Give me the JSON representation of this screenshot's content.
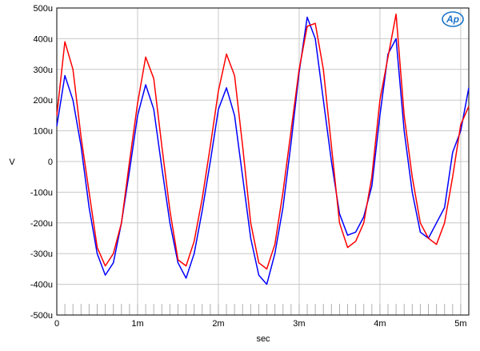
{
  "chart_data": {
    "type": "line",
    "title": "",
    "xlabel": "sec",
    "ylabel": "V",
    "xlim": [
      0,
      0.0051
    ],
    "ylim": [
      -0.0005,
      0.0005
    ],
    "grid": true,
    "x_ticks": [
      {
        "value": 0,
        "label": "0"
      },
      {
        "value": 0.001,
        "label": "1m"
      },
      {
        "value": 0.002,
        "label": "2m"
      },
      {
        "value": 0.003,
        "label": "3m"
      },
      {
        "value": 0.004,
        "label": "4m"
      },
      {
        "value": 0.005,
        "label": "5m"
      }
    ],
    "y_ticks": [
      {
        "value": 0.0005,
        "label": "500u"
      },
      {
        "value": 0.0004,
        "label": "400u"
      },
      {
        "value": 0.0003,
        "label": "300u"
      },
      {
        "value": 0.0002,
        "label": "200u"
      },
      {
        "value": 0.0001,
        "label": "100u"
      },
      {
        "value": 0,
        "label": "0"
      },
      {
        "value": -0.0001,
        "label": "-100u"
      },
      {
        "value": -0.0002,
        "label": "-200u"
      },
      {
        "value": -0.0003,
        "label": "-300u"
      },
      {
        "value": -0.0004,
        "label": "-400u"
      },
      {
        "value": -0.0005,
        "label": "-500u"
      }
    ],
    "series": [
      {
        "color": "#0000ff",
        "x": [
          0.0,
          0.0001,
          0.0002,
          0.0003,
          0.0004,
          0.0005,
          0.0006,
          0.0007,
          0.0008,
          0.0009,
          0.001,
          0.0011,
          0.0012,
          0.0013,
          0.0014,
          0.0015,
          0.0016,
          0.0017,
          0.0018,
          0.0019,
          0.002,
          0.0021,
          0.0022,
          0.0023,
          0.0024,
          0.0025,
          0.0026,
          0.0027,
          0.0028,
          0.0029,
          0.003,
          0.0031,
          0.0032,
          0.0033,
          0.0034,
          0.0035,
          0.0036,
          0.0037,
          0.0038,
          0.0039,
          0.004,
          0.0041,
          0.0042,
          0.0043,
          0.0044,
          0.0045,
          0.0046,
          0.0047,
          0.0048,
          0.0049,
          0.005,
          0.0051
        ],
        "y": [
          0.000115,
          0.00028,
          0.0002,
          5e-05,
          -0.00015,
          -0.0003,
          -0.00037,
          -0.00033,
          -0.0002,
          -3e-05,
          0.00015,
          0.00025,
          0.00017,
          -2e-05,
          -0.0002,
          -0.00033,
          -0.00038,
          -0.0003,
          -0.00016,
          0.0,
          0.00017,
          0.00024,
          0.00015,
          -5e-05,
          -0.00025,
          -0.00037,
          -0.0004,
          -0.0003,
          -0.00015,
          6e-05,
          0.00029,
          0.00047,
          0.0004,
          0.0002,
          0.0,
          -0.00017,
          -0.00024,
          -0.00023,
          -0.00018,
          -8e-05,
          0.00015,
          0.00035,
          0.0004,
          0.0001,
          -0.0001,
          -0.00023,
          -0.00025,
          -0.0002,
          -0.00015,
          3e-05,
          0.0001,
          0.00024
        ]
      },
      {
        "color": "#ff0000",
        "x": [
          0.0,
          0.0001,
          0.0002,
          0.0003,
          0.0004,
          0.0005,
          0.0006,
          0.0007,
          0.0008,
          0.0009,
          0.001,
          0.0011,
          0.0012,
          0.0013,
          0.0014,
          0.0015,
          0.0016,
          0.0017,
          0.0018,
          0.0019,
          0.002,
          0.0021,
          0.0022,
          0.0023,
          0.0024,
          0.0025,
          0.0026,
          0.0027,
          0.0028,
          0.0029,
          0.003,
          0.0031,
          0.0032,
          0.0033,
          0.0034,
          0.0035,
          0.0036,
          0.0037,
          0.0038,
          0.0039,
          0.004,
          0.0041,
          0.0042,
          0.0043,
          0.0044,
          0.0045,
          0.0046,
          0.0047,
          0.0048,
          0.0049,
          0.005,
          0.0051
        ],
        "y": [
          0.00015,
          0.00039,
          0.0003,
          8e-05,
          -0.0001,
          -0.00028,
          -0.00034,
          -0.0003,
          -0.0002,
          0.0,
          0.00019,
          0.00034,
          0.00027,
          5e-05,
          -0.00016,
          -0.00032,
          -0.00034,
          -0.00026,
          -0.00012,
          5e-05,
          0.00023,
          0.00035,
          0.00028,
          5e-05,
          -0.0002,
          -0.00033,
          -0.00035,
          -0.00027,
          -0.0001,
          0.0001,
          0.0003,
          0.00044,
          0.00045,
          0.0003,
          5e-05,
          -0.0002,
          -0.00028,
          -0.00026,
          -0.0002,
          -5e-05,
          0.0002,
          0.00034,
          0.00048,
          0.00015,
          -5e-05,
          -0.0002,
          -0.00025,
          -0.00027,
          -0.0002,
          -5e-05,
          0.00012,
          0.00018
        ]
      }
    ]
  },
  "logo": {
    "text": "Ap"
  }
}
